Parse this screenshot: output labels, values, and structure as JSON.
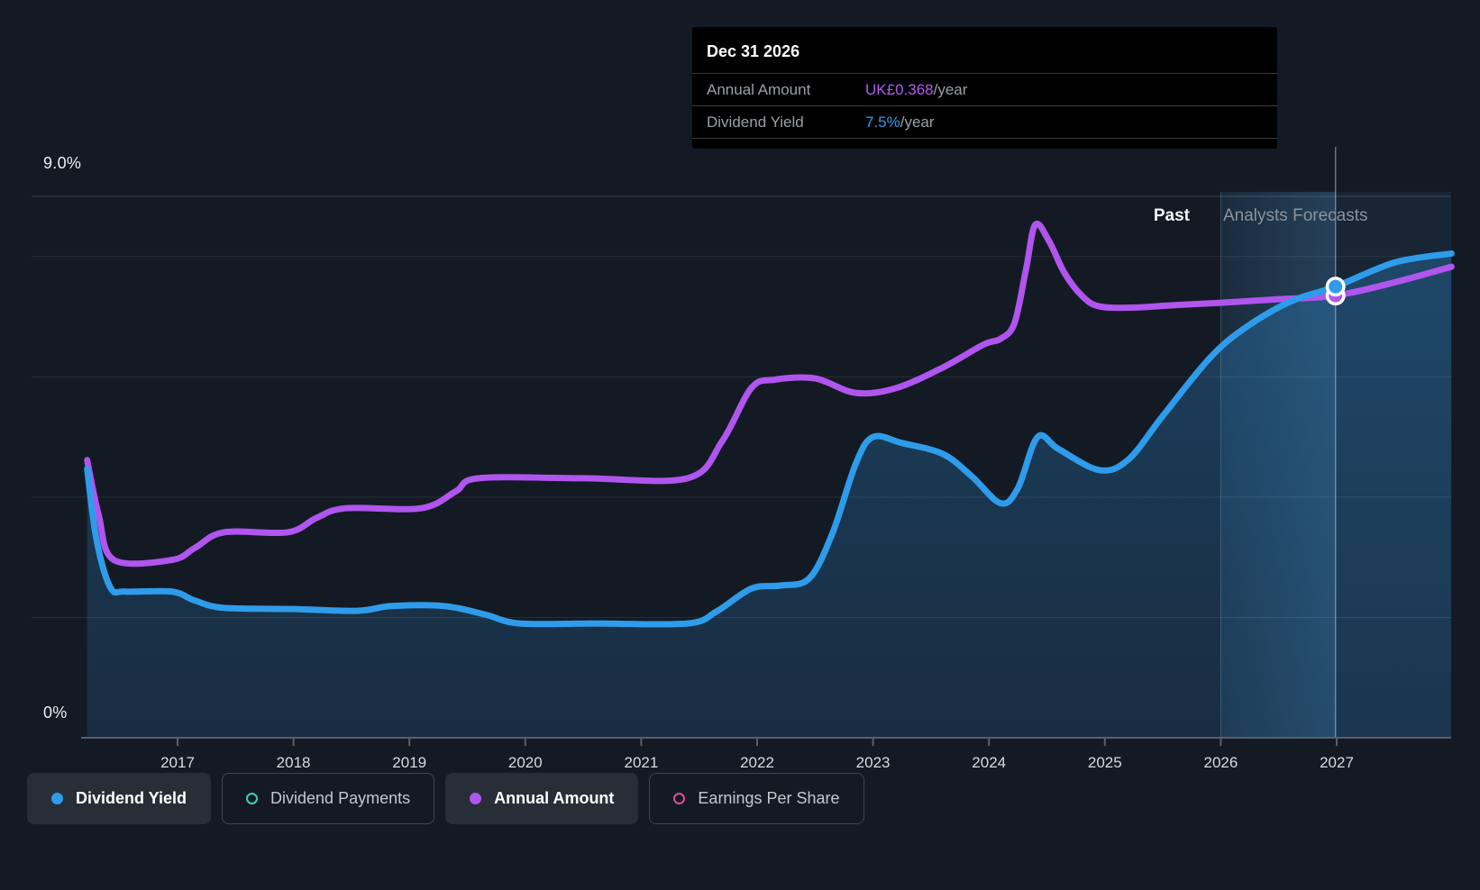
{
  "labels": {
    "y_top": "9.0%",
    "y_bottom": "0%",
    "past": "Past",
    "forecast": "Analysts Forecasts"
  },
  "tooltip": {
    "date": "Dec 31 2026",
    "rows": [
      {
        "label": "Annual Amount",
        "value": "UK£0.368",
        "suffix": "/year",
        "color": "#b15af2"
      },
      {
        "label": "Dividend Yield",
        "value": "7.5%",
        "suffix": "/year",
        "color": "#2f9ceb"
      }
    ]
  },
  "legend": {
    "items": [
      {
        "label": "Dividend Yield",
        "color": "#2f9ceb",
        "icon": "filled-dot",
        "active": true
      },
      {
        "label": "Dividend Payments",
        "color": "#41cfc0",
        "icon": "ring",
        "active": false
      },
      {
        "label": "Annual Amount",
        "color": "#b055ee",
        "icon": "filled-dot",
        "active": true
      },
      {
        "label": "Earnings Per Share",
        "color": "#d94f9b",
        "icon": "ring",
        "active": false
      }
    ]
  },
  "chart_data": {
    "type": "line",
    "title": "Dividend history and forecast",
    "xlim": [
      2016.22,
      2027.99
    ],
    "x_ticks": [
      {
        "year": 2017,
        "label": "2017"
      },
      {
        "year": 2018,
        "label": "2018"
      },
      {
        "year": 2019,
        "label": "2019"
      },
      {
        "year": 2020,
        "label": "2020"
      },
      {
        "year": 2021,
        "label": "2021"
      },
      {
        "year": 2022,
        "label": "2022"
      },
      {
        "year": 2023,
        "label": "2023"
      },
      {
        "year": 2024,
        "label": "2024"
      },
      {
        "year": 2025,
        "label": "2025"
      },
      {
        "year": 2026,
        "label": "2026"
      },
      {
        "year": 2027,
        "label": "2027"
      }
    ],
    "yield_axis": {
      "unit": "%",
      "min": 0,
      "max": 9,
      "labeled_ticks": [
        "9.0%",
        "0%"
      ]
    },
    "amount_axis": {
      "unit": "UK£/year"
    },
    "gridline_pcts": [
      9,
      8,
      6,
      4,
      2
    ],
    "divider_year": 2026.0,
    "hover": {
      "date": "Dec 31 2026",
      "year": 2026.99,
      "yield_pct": 7.5,
      "amount_gbp": 0.368
    },
    "series": [
      {
        "name": "Dividend Yield",
        "axis": "yield",
        "color": "#2f9ceb",
        "area": true,
        "shown": true,
        "points": [
          [
            2016.22,
            4.47
          ],
          [
            2016.3,
            3.3
          ],
          [
            2016.42,
            2.5
          ],
          [
            2016.55,
            2.43
          ],
          [
            2016.95,
            2.43
          ],
          [
            2017.15,
            2.28
          ],
          [
            2017.4,
            2.16
          ],
          [
            2018.0,
            2.14
          ],
          [
            2018.55,
            2.11
          ],
          [
            2018.85,
            2.19
          ],
          [
            2019.3,
            2.19
          ],
          [
            2019.65,
            2.05
          ],
          [
            2019.95,
            1.9
          ],
          [
            2020.6,
            1.9
          ],
          [
            2021.4,
            1.9
          ],
          [
            2021.65,
            2.1
          ],
          [
            2021.95,
            2.48
          ],
          [
            2022.2,
            2.53
          ],
          [
            2022.45,
            2.65
          ],
          [
            2022.65,
            3.4
          ],
          [
            2022.85,
            4.55
          ],
          [
            2023.0,
            5.0
          ],
          [
            2023.25,
            4.9
          ],
          [
            2023.6,
            4.72
          ],
          [
            2023.85,
            4.35
          ],
          [
            2024.1,
            3.9
          ],
          [
            2024.25,
            4.15
          ],
          [
            2024.42,
            5.0
          ],
          [
            2024.6,
            4.8
          ],
          [
            2024.95,
            4.45
          ],
          [
            2025.2,
            4.62
          ],
          [
            2025.5,
            5.35
          ],
          [
            2025.9,
            6.3
          ],
          [
            2026.2,
            6.8
          ],
          [
            2026.6,
            7.25
          ],
          [
            2026.99,
            7.5
          ],
          [
            2027.5,
            7.9
          ],
          [
            2027.99,
            8.05
          ]
        ]
      },
      {
        "name": "Annual Amount",
        "axis": "amount",
        "color": "#b055ee",
        "area": false,
        "shown": true,
        "points": [
          [
            2016.22,
            0.231
          ],
          [
            2016.32,
            0.185
          ],
          [
            2016.45,
            0.148
          ],
          [
            2016.95,
            0.148
          ],
          [
            2017.15,
            0.158
          ],
          [
            2017.4,
            0.171
          ],
          [
            2017.95,
            0.171
          ],
          [
            2018.2,
            0.183
          ],
          [
            2018.45,
            0.191
          ],
          [
            2019.1,
            0.191
          ],
          [
            2019.4,
            0.205
          ],
          [
            2019.6,
            0.216
          ],
          [
            2020.5,
            0.216
          ],
          [
            2021.4,
            0.216
          ],
          [
            2021.7,
            0.247
          ],
          [
            2021.95,
            0.291
          ],
          [
            2022.15,
            0.298
          ],
          [
            2022.5,
            0.299
          ],
          [
            2022.85,
            0.287
          ],
          [
            2023.2,
            0.291
          ],
          [
            2023.6,
            0.308
          ],
          [
            2023.95,
            0.327
          ],
          [
            2024.1,
            0.332
          ],
          [
            2024.22,
            0.345
          ],
          [
            2024.32,
            0.39
          ],
          [
            2024.4,
            0.427
          ],
          [
            2024.52,
            0.413
          ],
          [
            2024.65,
            0.387
          ],
          [
            2024.8,
            0.368
          ],
          [
            2024.95,
            0.359
          ],
          [
            2025.25,
            0.358
          ],
          [
            2025.6,
            0.36
          ],
          [
            2026.0,
            0.362
          ],
          [
            2026.5,
            0.365
          ],
          [
            2026.99,
            0.368
          ],
          [
            2027.5,
            0.379
          ],
          [
            2027.99,
            0.392
          ]
        ]
      },
      {
        "name": "Dividend Payments",
        "axis": "amount",
        "color": "#41cfc0",
        "area": false,
        "shown": false,
        "points": []
      },
      {
        "name": "Earnings Per Share",
        "axis": "amount",
        "color": "#d94f9b",
        "area": false,
        "shown": false,
        "points": []
      }
    ],
    "colors": {
      "forecast_tint": "#3e8ac8",
      "band_highlight": "#55a4e0",
      "axis_line": "#596069",
      "gridline": "#ffffff",
      "tick_label": "#d7dbdf"
    }
  }
}
